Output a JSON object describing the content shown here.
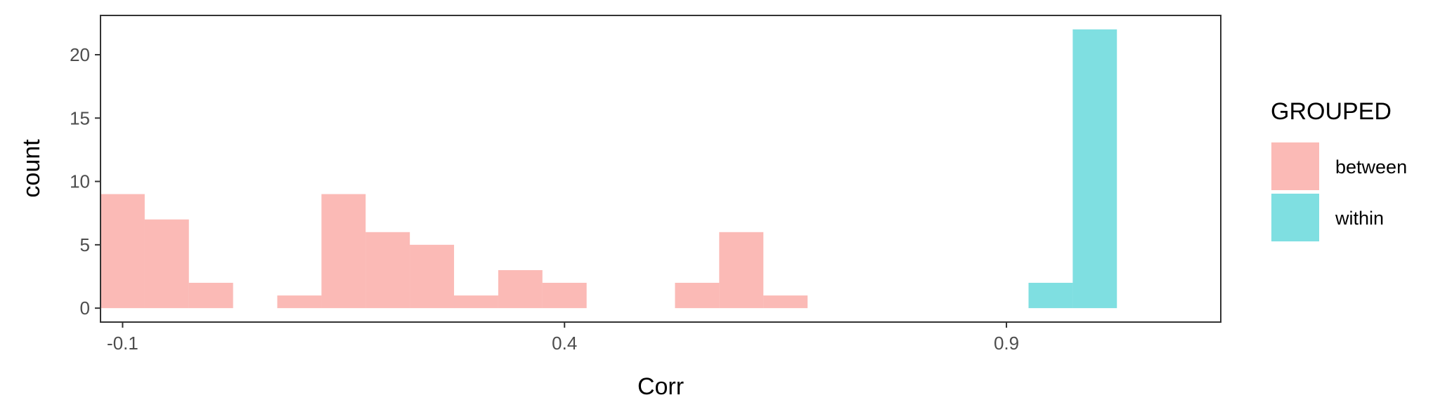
{
  "chart_data": {
    "type": "bar",
    "subtype": "stacked-histogram",
    "xlabel": "Corr",
    "ylabel": "count",
    "xlim": [
      -0.125,
      1.1425
    ],
    "ylim": [
      -1.1,
      23.1
    ],
    "x_ticks": [
      {
        "value": -0.1,
        "label": "-0.1"
      },
      {
        "value": 0.4,
        "label": "0.4"
      },
      {
        "value": 0.9,
        "label": "0.9"
      }
    ],
    "y_ticks": [
      {
        "value": 0,
        "label": "0"
      },
      {
        "value": 5,
        "label": "5"
      },
      {
        "value": 10,
        "label": "10"
      },
      {
        "value": 15,
        "label": "15"
      },
      {
        "value": 20,
        "label": "20"
      }
    ],
    "bin_width": 0.05,
    "legend": {
      "title": "GROUPED",
      "position": "right"
    },
    "series": [
      {
        "name": "between",
        "color": "#F8766D",
        "bins": [
          {
            "x0": -0.125,
            "x1": -0.075,
            "count": 9
          },
          {
            "x0": -0.075,
            "x1": -0.025,
            "count": 7
          },
          {
            "x0": -0.025,
            "x1": 0.025,
            "count": 2
          },
          {
            "x0": 0.075,
            "x1": 0.125,
            "count": 1
          },
          {
            "x0": 0.125,
            "x1": 0.175,
            "count": 9
          },
          {
            "x0": 0.175,
            "x1": 0.225,
            "count": 6
          },
          {
            "x0": 0.225,
            "x1": 0.275,
            "count": 5
          },
          {
            "x0": 0.275,
            "x1": 0.325,
            "count": 1
          },
          {
            "x0": 0.325,
            "x1": 0.375,
            "count": 3
          },
          {
            "x0": 0.375,
            "x1": 0.425,
            "count": 2
          },
          {
            "x0": 0.525,
            "x1": 0.575,
            "count": 2
          },
          {
            "x0": 0.575,
            "x1": 0.625,
            "count": 6
          },
          {
            "x0": 0.625,
            "x1": 0.675,
            "count": 1
          }
        ]
      },
      {
        "name": "within",
        "color": "#00BFC4",
        "bins": [
          {
            "x0": 0.925,
            "x1": 0.975,
            "count": 2
          },
          {
            "x0": 0.975,
            "x1": 1.025,
            "count": 22
          }
        ]
      }
    ],
    "grid": false,
    "bar_opacity": 0.5
  }
}
